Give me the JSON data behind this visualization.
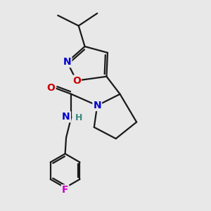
{
  "background_color": "#e8e8e8",
  "atom_colors": {
    "N": "#0000cc",
    "O": "#cc0000",
    "F": "#cc00cc",
    "H": "#3a8a7a"
  },
  "bond_color": "#1a1a1a",
  "bond_width": 1.6,
  "font_size_atom": 10,
  "font_size_H": 9
}
